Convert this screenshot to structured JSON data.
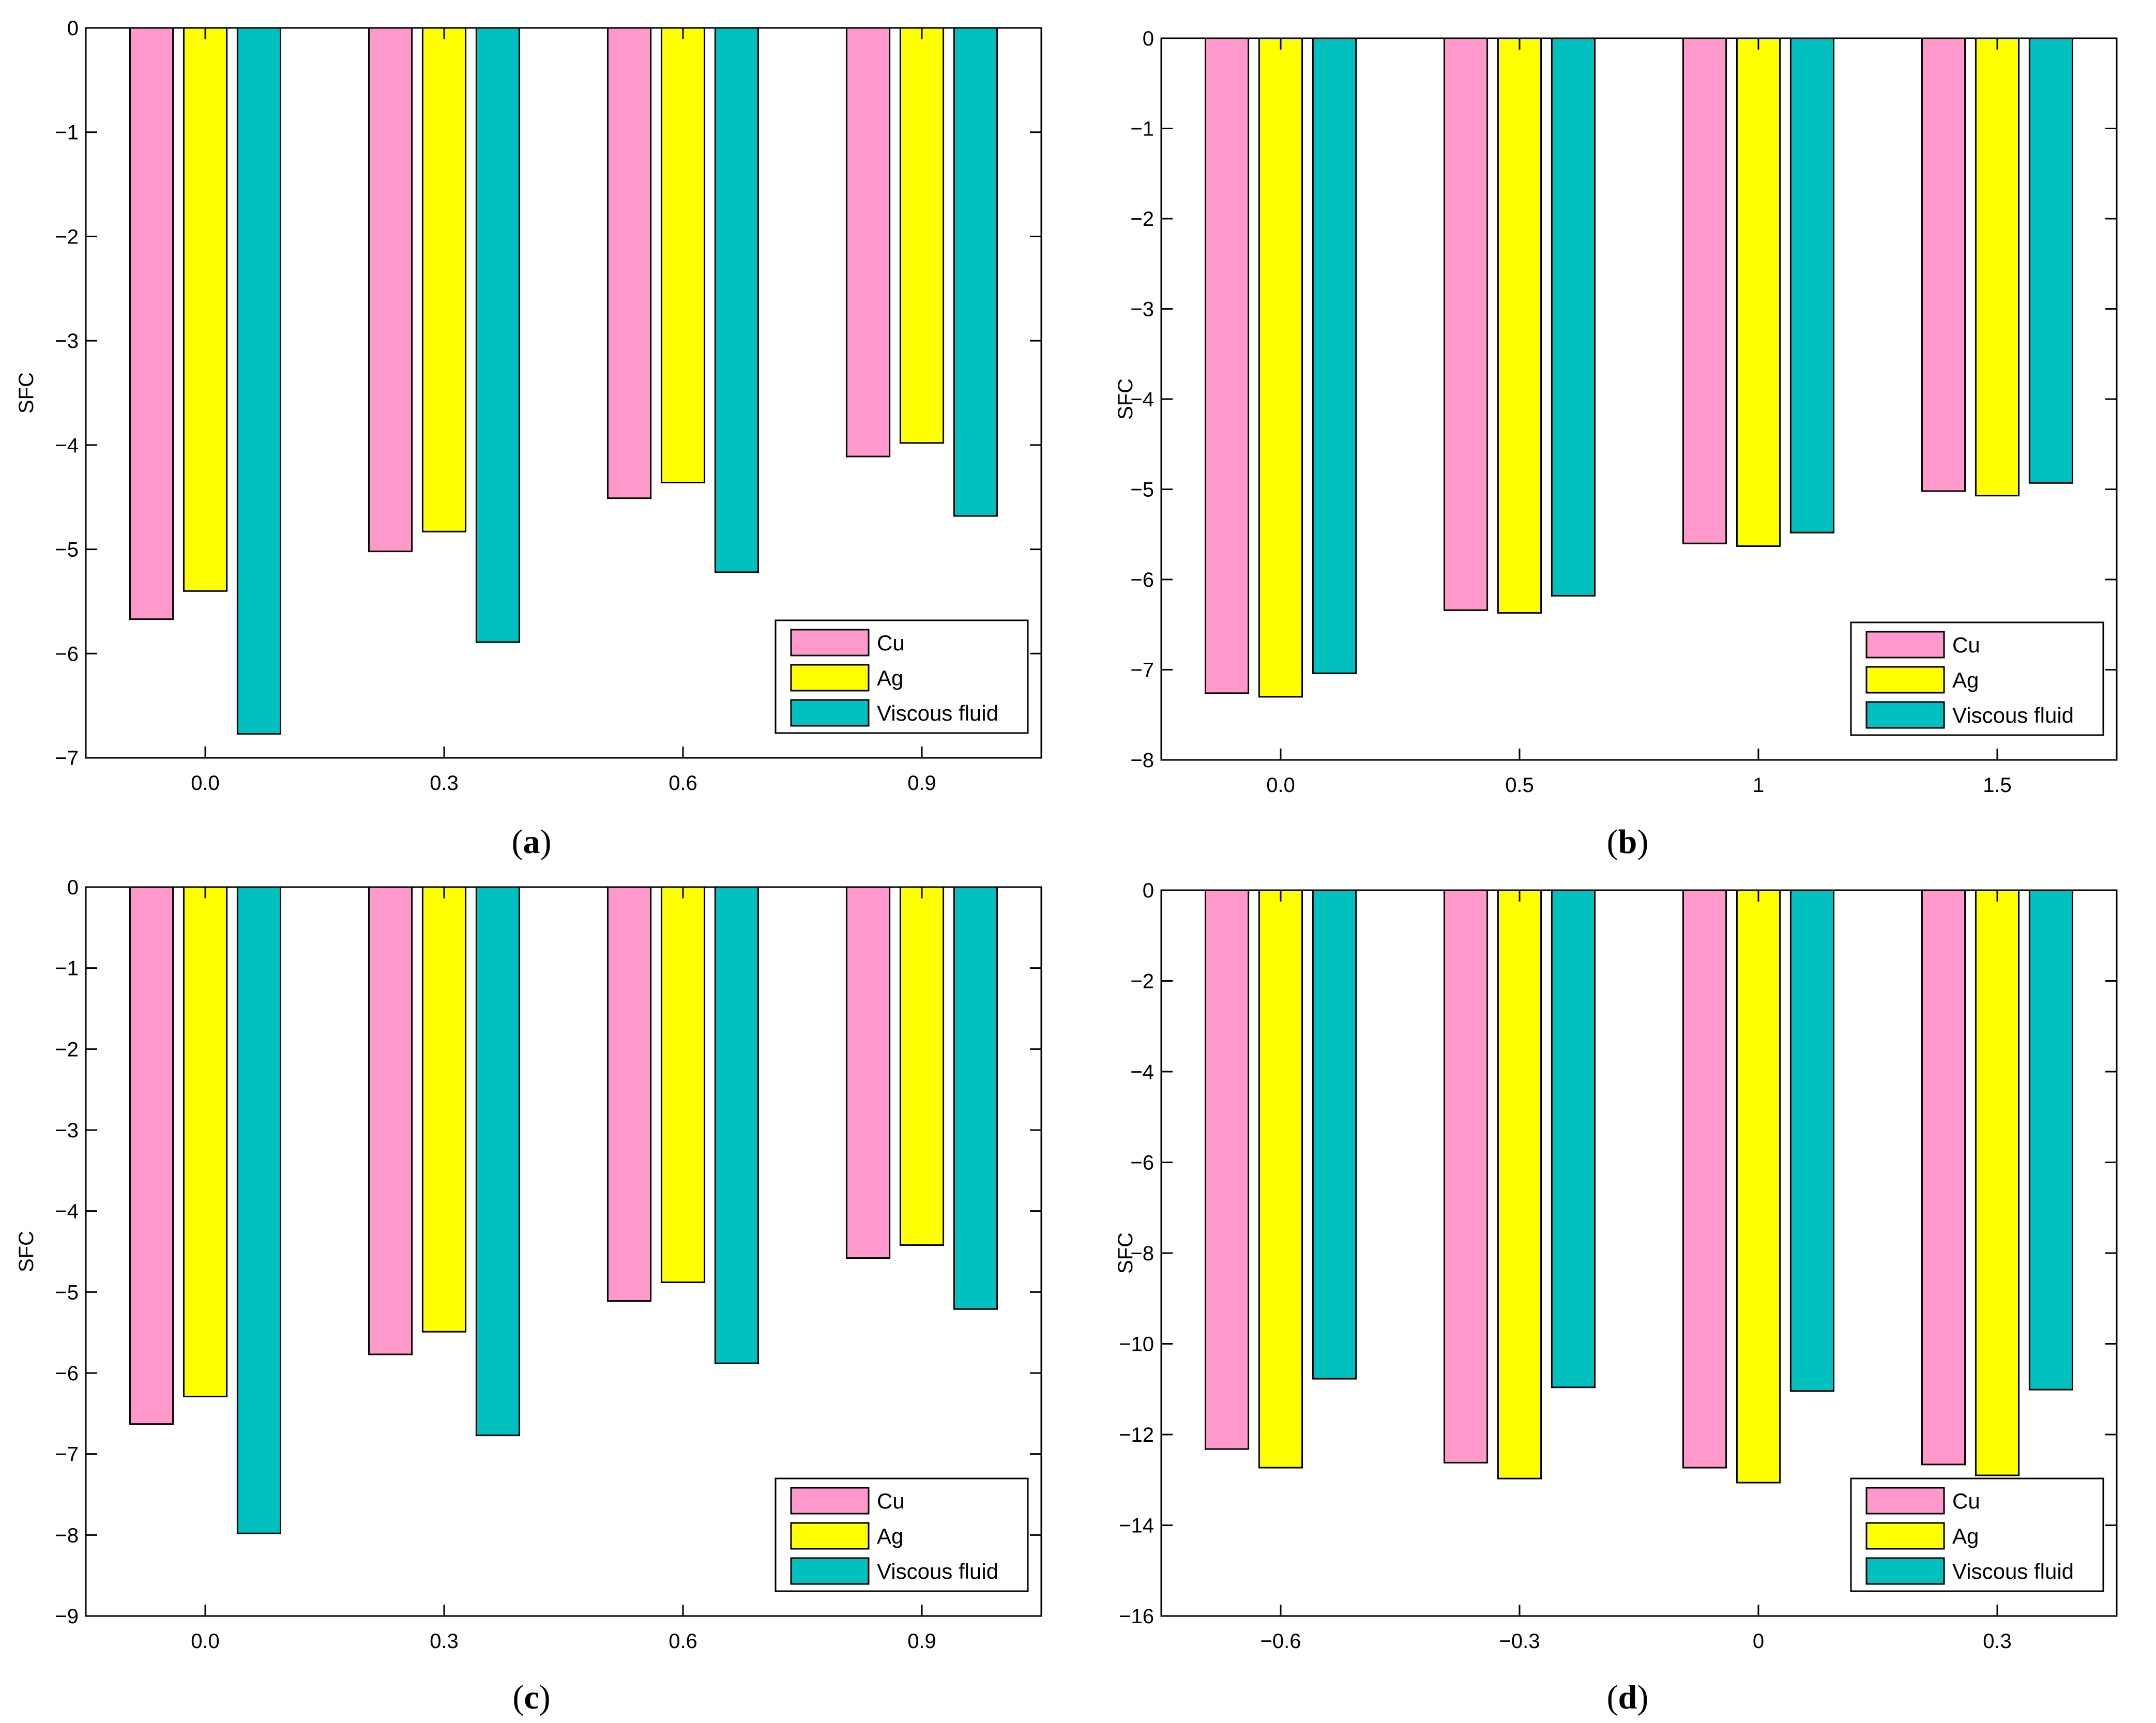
{
  "colors": {
    "cu": "#ff99cc",
    "ag": "#ffff00",
    "viscous": "#00c0c0",
    "axis": "#000000"
  },
  "chart_data": [
    {
      "id": "a",
      "type": "bar",
      "caption_letter": "a",
      "ylabel": "SFC",
      "categories": [
        "0.0",
        "0.3",
        "0.6",
        "0.9"
      ],
      "ylim": [
        -7,
        0
      ],
      "yticks": [
        0,
        -1,
        -2,
        -3,
        -4,
        -5,
        -6,
        -7
      ],
      "ytick_labels": [
        "0",
        "−1",
        "−2",
        "−3",
        "−4",
        "−5",
        "−6",
        "−7"
      ],
      "series": [
        {
          "name": "Cu",
          "color": "#ff99cc",
          "values": [
            -5.67,
            -5.02,
            -4.51,
            -4.11
          ]
        },
        {
          "name": "Ag",
          "color": "#ffff00",
          "values": [
            -5.4,
            -4.83,
            -4.36,
            -3.98
          ]
        },
        {
          "name": "Viscous fluid",
          "color": "#00c0c0",
          "values": [
            -6.77,
            -5.89,
            -5.22,
            -4.68
          ]
        }
      ],
      "legend": "bottom-right"
    },
    {
      "id": "b",
      "type": "bar",
      "caption_letter": "b",
      "ylabel": "SFC",
      "categories": [
        "0.0",
        "0.5",
        "1",
        "1.5"
      ],
      "ylim": [
        -8,
        0
      ],
      "yticks": [
        0,
        -1,
        -2,
        -3,
        -4,
        -5,
        -6,
        -7,
        -8
      ],
      "ytick_labels": [
        "0",
        "−1",
        "−2",
        "−3",
        "−4",
        "−5",
        "−6",
        "−7",
        "−8"
      ],
      "series": [
        {
          "name": "Cu",
          "color": "#ff99cc",
          "values": [
            -7.26,
            -6.34,
            -5.6,
            -5.02
          ]
        },
        {
          "name": "Ag",
          "color": "#ffff00",
          "values": [
            -7.3,
            -6.37,
            -5.63,
            -5.07
          ]
        },
        {
          "name": "Viscous fluid",
          "color": "#00c0c0",
          "values": [
            -7.04,
            -6.18,
            -5.48,
            -4.93
          ]
        }
      ],
      "legend": "bottom-right"
    },
    {
      "id": "c",
      "type": "bar",
      "caption_letter": "c",
      "ylabel": "SFC",
      "categories": [
        "0.0",
        "0.3",
        "0.6",
        "0.9"
      ],
      "ylim": [
        -9,
        0
      ],
      "yticks": [
        0,
        -1,
        -2,
        -3,
        -4,
        -5,
        -6,
        -7,
        -8,
        -9
      ],
      "ytick_labels": [
        "0",
        "−1",
        "−2",
        "−3",
        "−4",
        "−5",
        "−6",
        "−7",
        "−8",
        "−9"
      ],
      "series": [
        {
          "name": "Cu",
          "color": "#ff99cc",
          "values": [
            -6.63,
            -5.77,
            -5.11,
            -4.58
          ]
        },
        {
          "name": "Ag",
          "color": "#ffff00",
          "values": [
            -6.29,
            -5.49,
            -4.88,
            -4.42
          ]
        },
        {
          "name": "Viscous fluid",
          "color": "#00c0c0",
          "values": [
            -7.98,
            -6.77,
            -5.88,
            -5.21
          ]
        }
      ],
      "legend": "bottom-right"
    },
    {
      "id": "d",
      "type": "bar",
      "caption_letter": "d",
      "ylabel": "SFC",
      "categories": [
        "−0.6",
        "−0.3",
        "0",
        "0.3"
      ],
      "ylim": [
        -16,
        0
      ],
      "yticks": [
        0,
        -2,
        -4,
        -6,
        -8,
        -10,
        -12,
        -14,
        -16
      ],
      "ytick_labels": [
        "0",
        "−2",
        "−4",
        "−6",
        "−8",
        "−10",
        "−12",
        "−14",
        "−16"
      ],
      "series": [
        {
          "name": "Cu",
          "color": "#ff99cc",
          "values": [
            -12.32,
            -12.62,
            -12.73,
            -12.66
          ]
        },
        {
          "name": "Ag",
          "color": "#ffff00",
          "values": [
            -12.73,
            -12.97,
            -13.06,
            -12.9
          ]
        },
        {
          "name": "Viscous fluid",
          "color": "#00c0c0",
          "values": [
            -10.77,
            -10.96,
            -11.04,
            -11.01
          ]
        }
      ],
      "legend": "bottom-right"
    }
  ]
}
